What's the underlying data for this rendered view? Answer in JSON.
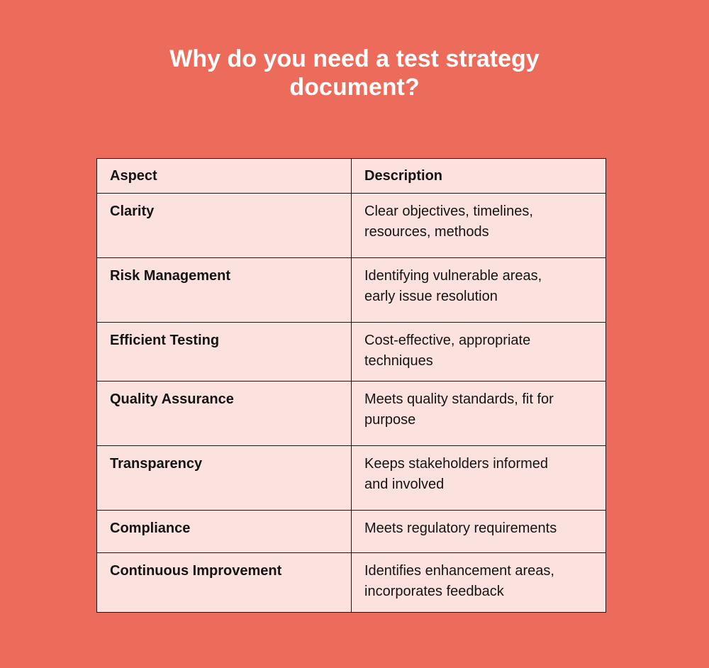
{
  "title": {
    "line1": "Why do you need a test strategy",
    "line2": "document?"
  },
  "table": {
    "headers": [
      "Aspect",
      "Description"
    ],
    "rows": [
      {
        "aspect": "Clarity",
        "desc1": "Clear objectives, timelines,",
        "desc2": "resources, methods"
      },
      {
        "aspect": "Risk Management",
        "desc1": "Identifying vulnerable areas,",
        "desc2": "early issue resolution"
      },
      {
        "aspect": "Efficient Testing",
        "desc1": "Cost-effective, appropriate",
        "desc2": "techniques"
      },
      {
        "aspect": "Quality Assurance",
        "desc1": "Meets quality standards, fit for",
        "desc2": "purpose"
      },
      {
        "aspect": "Transparency",
        "desc1": "Keeps stakeholders informed",
        "desc2": "and involved"
      },
      {
        "aspect": "Compliance",
        "desc1": "Meets regulatory requirements",
        "desc2": ""
      },
      {
        "aspect": "Continuous Improvement",
        "desc1": "Identifies enhancement areas,",
        "desc2": "incorporates feedback"
      }
    ]
  },
  "colors": {
    "background": "#EC6B5A",
    "table_bg": "#FCE2DF",
    "text": "#141414"
  }
}
